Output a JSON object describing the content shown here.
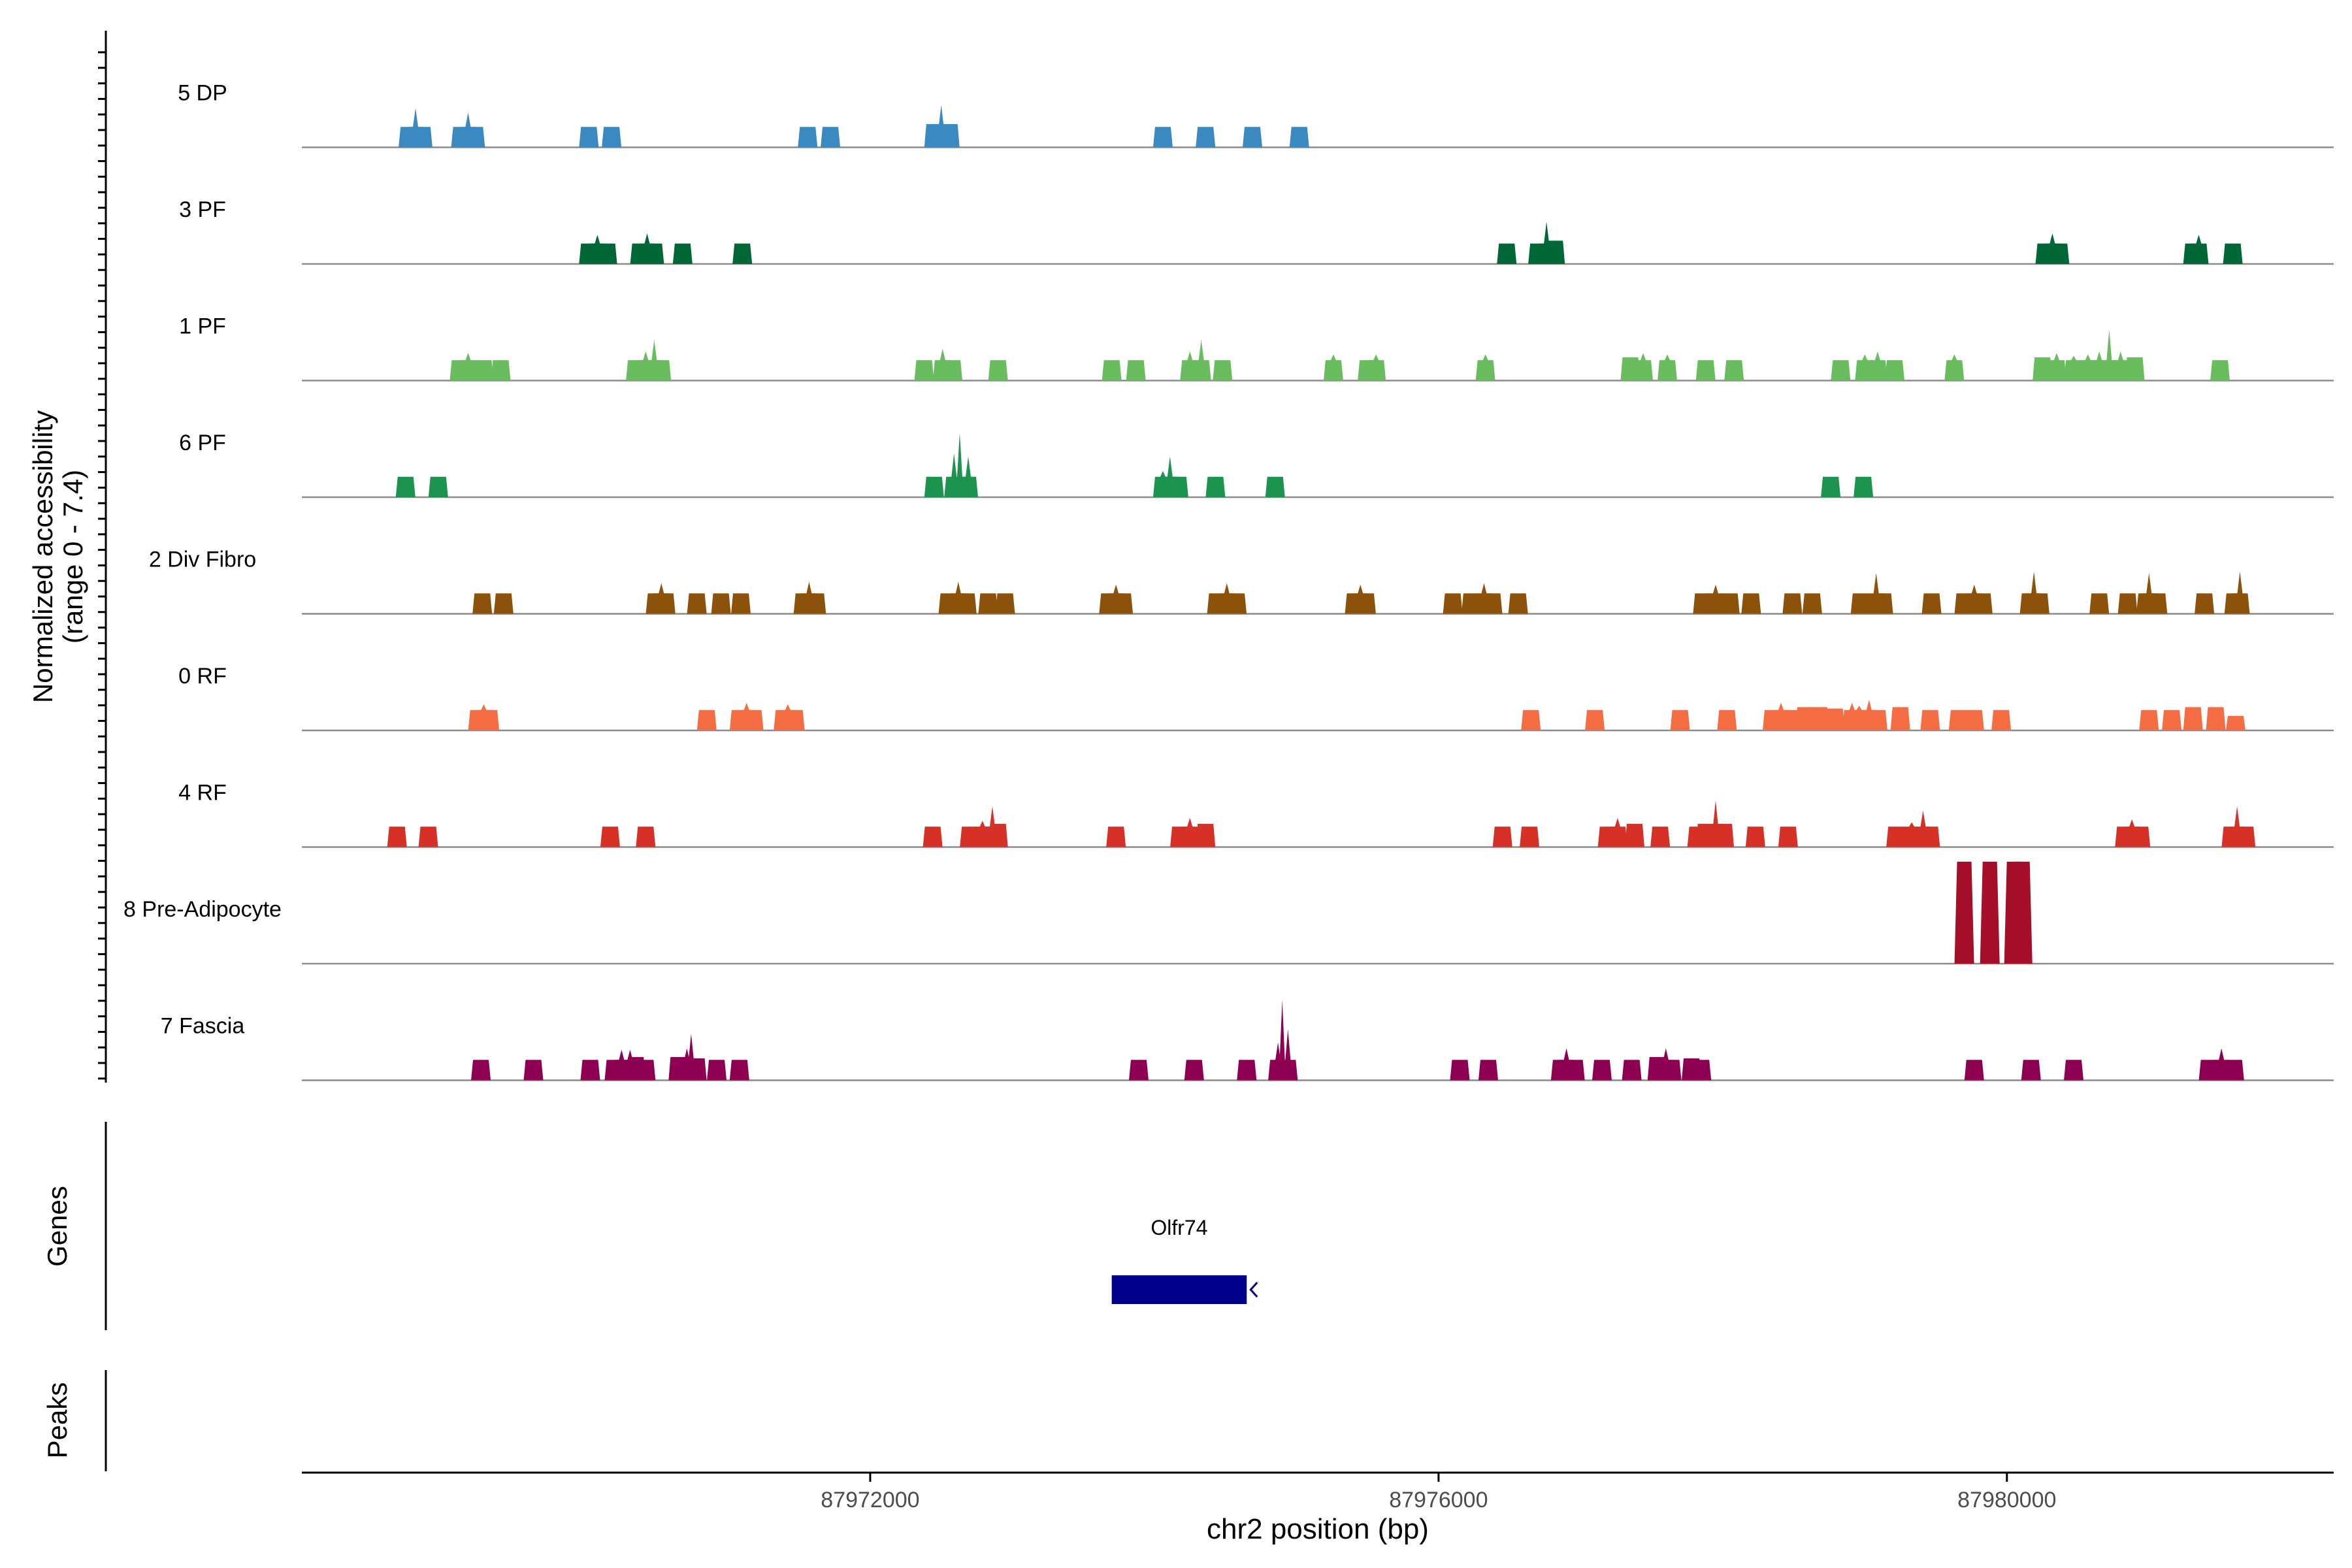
{
  "chart_data": {
    "type": "area",
    "title": "",
    "ylabel_line1": "Normalized accessibility",
    "ylabel_line2": "(range 0 - 7.4)",
    "ylim": [
      0,
      7.4
    ],
    "xlabel": "chr2 position (bp)",
    "xlim": [
      87968000,
      87982300
    ],
    "x_ticks": [
      87972000,
      87976000,
      87980000
    ],
    "x_tick_labels": [
      "87972000",
      "87976000",
      "87980000"
    ],
    "genes_label": "Genes",
    "peaks_label": "Peaks",
    "genes": [
      {
        "name": "Olfr74",
        "start": 87973700,
        "end": 87974650,
        "strand": "-",
        "color": "#00008B"
      }
    ],
    "series": [
      {
        "name": "5 DP",
        "color": "#3A89C0",
        "peaks": [
          [
            87968750,
            1.4
          ],
          [
            87968800,
            2.7
          ],
          [
            87968850,
            1.4
          ],
          [
            87969120,
            1.4
          ],
          [
            87969170,
            2.4
          ],
          [
            87969220,
            1.4
          ],
          [
            87970020,
            1.4
          ],
          [
            87970180,
            1.4
          ],
          [
            87971560,
            1.4
          ],
          [
            87971720,
            1.4
          ],
          [
            87972450,
            1.6
          ],
          [
            87972500,
            2.9
          ],
          [
            87972560,
            1.6
          ],
          [
            87974060,
            1.4
          ],
          [
            87974360,
            1.4
          ],
          [
            87974690,
            1.4
          ],
          [
            87975020,
            1.4
          ]
        ]
      },
      {
        "name": "3 PF",
        "color": "#006837",
        "peaks": [
          [
            87970020,
            1.4
          ],
          [
            87970080,
            2.0
          ],
          [
            87970150,
            1.4
          ],
          [
            87970380,
            1.4
          ],
          [
            87970430,
            2.1
          ],
          [
            87970480,
            1.4
          ],
          [
            87970680,
            1.4
          ],
          [
            87971100,
            1.4
          ],
          [
            87976480,
            1.4
          ],
          [
            87976700,
            1.4
          ],
          [
            87976760,
            2.9
          ],
          [
            87976820,
            1.6
          ],
          [
            87980270,
            1.4
          ],
          [
            87980320,
            2.1
          ],
          [
            87980370,
            1.4
          ],
          [
            87981310,
            1.4
          ],
          [
            87981350,
            2.0
          ],
          [
            87981590,
            1.4
          ]
        ]
      },
      {
        "name": "1 PF",
        "color": "#6ABD5E",
        "peaks": [
          [
            87969110,
            1.4
          ],
          [
            87969170,
            1.9
          ],
          [
            87969280,
            1.4
          ],
          [
            87969400,
            1.4
          ],
          [
            87970350,
            1.4
          ],
          [
            87970420,
            2.0
          ],
          [
            87970480,
            2.8
          ],
          [
            87970530,
            1.4
          ],
          [
            87972380,
            1.4
          ],
          [
            87972510,
            2.2
          ],
          [
            87972580,
            1.4
          ],
          [
            87972900,
            1.4
          ],
          [
            87973700,
            1.4
          ],
          [
            87973870,
            1.4
          ],
          [
            87974250,
            2.0
          ],
          [
            87974330,
            2.8
          ],
          [
            87974480,
            1.4
          ],
          [
            87975260,
            1.8
          ],
          [
            87975500,
            1.4
          ],
          [
            87975560,
            1.8
          ],
          [
            87976330,
            1.8
          ],
          [
            87977350,
            1.6
          ],
          [
            87977440,
            1.9
          ],
          [
            87977610,
            1.8
          ],
          [
            87977880,
            1.4
          ],
          [
            87978080,
            1.4
          ],
          [
            87978830,
            1.4
          ],
          [
            87979000,
            1.8
          ],
          [
            87979090,
            2.0
          ],
          [
            87979210,
            1.4
          ],
          [
            87979630,
            1.8
          ],
          [
            87980250,
            1.6
          ],
          [
            87980350,
            1.9
          ],
          [
            87980470,
            1.7
          ],
          [
            87980570,
            1.8
          ],
          [
            87980650,
            2.0
          ],
          [
            87980720,
            3.5
          ],
          [
            87980800,
            2.0
          ],
          [
            87980900,
            1.6
          ],
          [
            87981500,
            1.4
          ]
        ]
      },
      {
        "name": "6 PF",
        "color": "#1D9350",
        "peaks": [
          [
            87968730,
            1.4
          ],
          [
            87968960,
            1.4
          ],
          [
            87972450,
            1.4
          ],
          [
            87972590,
            3.0
          ],
          [
            87972630,
            4.4
          ],
          [
            87972690,
            2.8
          ],
          [
            87974060,
            1.8
          ],
          [
            87974110,
            2.8
          ],
          [
            87974170,
            1.4
          ],
          [
            87974430,
            1.4
          ],
          [
            87974850,
            1.4
          ],
          [
            87978760,
            1.4
          ],
          [
            87978990,
            1.4
          ]
        ]
      },
      {
        "name": "2 Div Fibro",
        "color": "#8C510A",
        "peaks": [
          [
            87969270,
            1.4
          ],
          [
            87969420,
            1.4
          ],
          [
            87970490,
            1.4
          ],
          [
            87970530,
            2.1
          ],
          [
            87970560,
            1.4
          ],
          [
            87970780,
            1.4
          ],
          [
            87970950,
            1.4
          ],
          [
            87971090,
            1.4
          ],
          [
            87971530,
            1.4
          ],
          [
            87971570,
            2.2
          ],
          [
            87971620,
            1.4
          ],
          [
            87972550,
            1.4
          ],
          [
            87972620,
            2.2
          ],
          [
            87972680,
            1.4
          ],
          [
            87972830,
            1.4
          ],
          [
            87972950,
            1.4
          ],
          [
            87973680,
            1.4
          ],
          [
            87973730,
            2.0
          ],
          [
            87973780,
            1.4
          ],
          [
            87974440,
            1.4
          ],
          [
            87974510,
            2.1
          ],
          [
            87974580,
            1.4
          ],
          [
            87975410,
            1.4
          ],
          [
            87975450,
            2.0
          ],
          [
            87975490,
            1.4
          ],
          [
            87976100,
            1.4
          ],
          [
            87976230,
            1.4
          ],
          [
            87976320,
            2.1
          ],
          [
            87976380,
            1.4
          ],
          [
            87976560,
            1.4
          ],
          [
            87977860,
            1.4
          ],
          [
            87977950,
            2.0
          ],
          [
            87978050,
            1.4
          ],
          [
            87978200,
            1.4
          ],
          [
            87978490,
            1.4
          ],
          [
            87978630,
            1.4
          ],
          [
            87978970,
            1.4
          ],
          [
            87979080,
            2.8
          ],
          [
            87979130,
            1.4
          ],
          [
            87979470,
            1.4
          ],
          [
            87979700,
            1.4
          ],
          [
            87979770,
            2.0
          ],
          [
            87979830,
            1.4
          ],
          [
            87980160,
            1.4
          ],
          [
            87980190,
            2.9
          ],
          [
            87980230,
            1.4
          ],
          [
            87980650,
            1.4
          ],
          [
            87980850,
            1.4
          ],
          [
            87980980,
            1.4
          ],
          [
            87981000,
            2.8
          ],
          [
            87981060,
            1.4
          ],
          [
            87981390,
            1.4
          ],
          [
            87981600,
            1.4
          ],
          [
            87981640,
            2.9
          ]
        ]
      },
      {
        "name": "0 RF",
        "color": "#F46D43",
        "peaks": [
          [
            87969240,
            1.4
          ],
          [
            87969280,
            1.8
          ],
          [
            87969320,
            1.4
          ],
          [
            87970850,
            1.4
          ],
          [
            87971080,
            1.4
          ],
          [
            87971130,
            1.9
          ],
          [
            87971180,
            1.4
          ],
          [
            87971390,
            1.4
          ],
          [
            87971420,
            1.8
          ],
          [
            87971470,
            1.4
          ],
          [
            87976650,
            1.4
          ],
          [
            87977100,
            1.4
          ],
          [
            87977700,
            1.4
          ],
          [
            87978030,
            1.4
          ],
          [
            87978350,
            1.4
          ],
          [
            87978410,
            1.9
          ],
          [
            87978480,
            1.4
          ],
          [
            87978580,
            1.6
          ],
          [
            87978680,
            1.6
          ],
          [
            87978790,
            1.5
          ],
          [
            87978910,
            1.9
          ],
          [
            87978960,
            1.7
          ],
          [
            87979030,
            2.1
          ],
          [
            87979090,
            1.4
          ],
          [
            87979250,
            1.6
          ],
          [
            87979460,
            1.4
          ],
          [
            87979660,
            1.4
          ],
          [
            87979770,
            1.4
          ],
          [
            87979960,
            1.4
          ],
          [
            87981000,
            1.4
          ],
          [
            87981160,
            1.4
          ],
          [
            87981310,
            1.6
          ],
          [
            87981470,
            1.6
          ],
          [
            87981610,
            1.0
          ]
        ]
      },
      {
        "name": "4 RF",
        "color": "#D73027",
        "peaks": [
          [
            87968670,
            1.4
          ],
          [
            87968890,
            1.4
          ],
          [
            87970170,
            1.4
          ],
          [
            87970420,
            1.4
          ],
          [
            87972440,
            1.4
          ],
          [
            87972700,
            1.4
          ],
          [
            87972790,
            1.8
          ],
          [
            87972860,
            2.8
          ],
          [
            87972900,
            1.6
          ],
          [
            87973730,
            1.4
          ],
          [
            87974180,
            1.4
          ],
          [
            87974250,
            2.0
          ],
          [
            87974360,
            1.6
          ],
          [
            87976450,
            1.4
          ],
          [
            87976640,
            1.4
          ],
          [
            87977190,
            1.4
          ],
          [
            87977260,
            2.0
          ],
          [
            87977380,
            1.6
          ],
          [
            87977560,
            1.4
          ],
          [
            87977820,
            1.4
          ],
          [
            87977880,
            1.6
          ],
          [
            87977950,
            3.2
          ],
          [
            87978010,
            1.6
          ],
          [
            87978230,
            1.4
          ],
          [
            87978460,
            1.4
          ],
          [
            87979220,
            1.4
          ],
          [
            87979330,
            1.7
          ],
          [
            87979410,
            2.5
          ],
          [
            87979460,
            1.4
          ],
          [
            87980830,
            1.4
          ],
          [
            87980880,
            1.9
          ],
          [
            87980940,
            1.4
          ],
          [
            87981580,
            1.4
          ],
          [
            87981620,
            2.8
          ],
          [
            87981680,
            1.4
          ]
        ]
      },
      {
        "name": "8 Pre-Adipocyte",
        "color": "#A50F2A",
        "peaks": [
          [
            87979700,
            7.0
          ],
          [
            87979880,
            7.0
          ],
          [
            87980050,
            7.0
          ],
          [
            87980110,
            7.0
          ]
        ]
      },
      {
        "name": "7 Fascia",
        "color": "#8E0152",
        "peaks": [
          [
            87969260,
            1.4
          ],
          [
            87969630,
            1.4
          ],
          [
            87970030,
            1.4
          ],
          [
            87970200,
            1.4
          ],
          [
            87970250,
            2.1
          ],
          [
            87970310,
            2.1
          ],
          [
            87970350,
            1.6
          ],
          [
            87970420,
            1.4
          ],
          [
            87970650,
            1.6
          ],
          [
            87970710,
            2.2
          ],
          [
            87970740,
            3.2
          ],
          [
            87970780,
            1.5
          ],
          [
            87970920,
            1.4
          ],
          [
            87971080,
            1.4
          ],
          [
            87973890,
            1.4
          ],
          [
            87974280,
            1.4
          ],
          [
            87974650,
            1.4
          ],
          [
            87974870,
            2.6
          ],
          [
            87974900,
            5.5
          ],
          [
            87974940,
            3.5
          ],
          [
            87976150,
            1.4
          ],
          [
            87976350,
            1.4
          ],
          [
            87976860,
            1.4
          ],
          [
            87976900,
            2.2
          ],
          [
            87976960,
            1.4
          ],
          [
            87977150,
            1.4
          ],
          [
            87977360,
            1.4
          ],
          [
            87977540,
            1.6
          ],
          [
            87977600,
            2.2
          ],
          [
            87977640,
            1.4
          ],
          [
            87977780,
            1.5
          ],
          [
            87977850,
            1.4
          ],
          [
            87979770,
            1.4
          ],
          [
            87980170,
            1.4
          ],
          [
            87980470,
            1.4
          ],
          [
            87981420,
            1.4
          ],
          [
            87981510,
            2.2
          ],
          [
            87981600,
            1.4
          ]
        ]
      }
    ]
  }
}
